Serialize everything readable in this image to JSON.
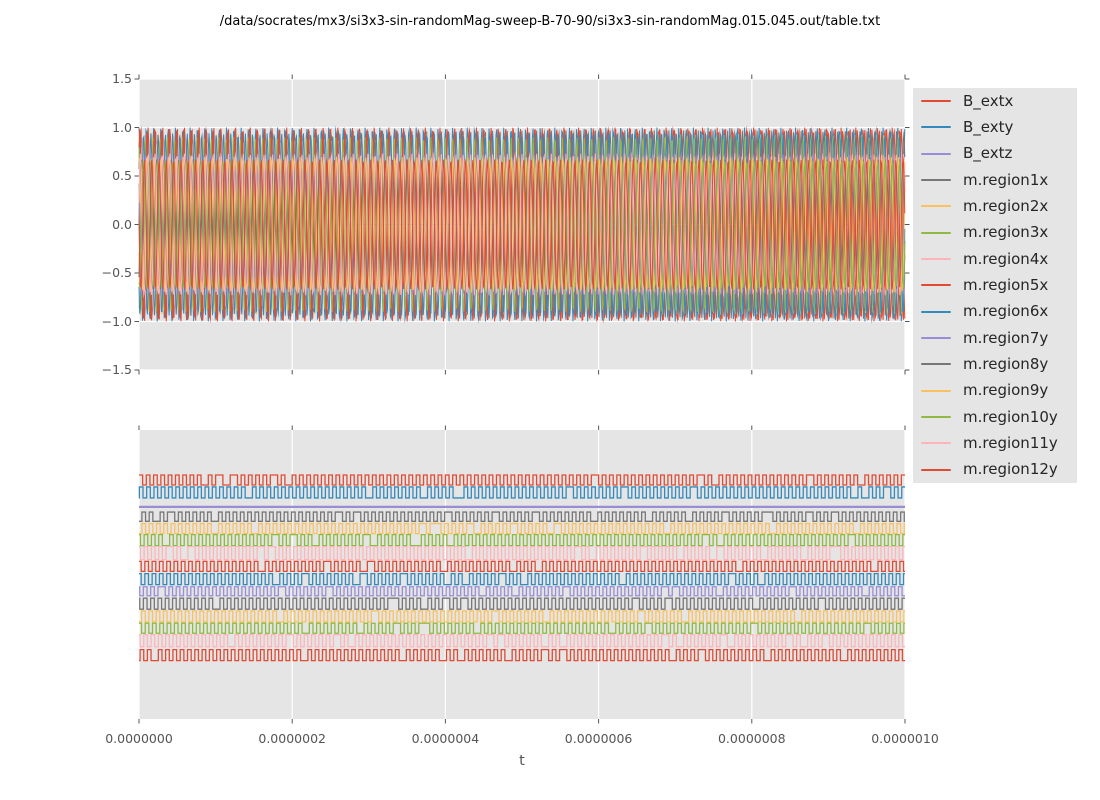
{
  "title": "/data/socrates/mx3/si3x3-sin-randomMag-sweep-B-70-90/si3x3-sin-randomMag.015.045.out/table.txt",
  "colors": {
    "figure_bg": "#FFFFFF",
    "axes_bg": "#E5E5E5",
    "grid": "#FFFFFF",
    "tick_mark": "#555555",
    "tick_text": "#555555",
    "title_text": "#000000",
    "legend_text": "#262626",
    "palette": [
      "#E24A33",
      "#348ABD",
      "#988ED5",
      "#777777",
      "#FBC15E",
      "#8EBA42",
      "#FFB5B8"
    ]
  },
  "axes": {
    "xlabel": "t",
    "x_tick_labels": [
      "0.0000000",
      "0.0000002",
      "0.0000004",
      "0.0000006",
      "0.0000008",
      "0.0000010"
    ],
    "top_y_tick_labels": [
      "1.5",
      "1.0",
      "0.5",
      "0.0",
      "−0.5",
      "−1.0",
      "−1.5"
    ]
  },
  "chart_data": {
    "type": "line",
    "title": "/data/socrates/mx3/si3x3-sin-randomMag-sweep-B-70-90/si3x3-sin-randomMag.015.045.out/table.txt",
    "xlabel": "t",
    "x_range_seconds": [
      0,
      1e-06
    ],
    "x_tick_values": [
      0,
      2e-07,
      4e-07,
      6e-07,
      8e-07,
      1e-06
    ],
    "cycles_in_window": 105,
    "switch_hold_probability": 0.06,
    "legend_position": "right",
    "subplots": [
      {
        "id": "top",
        "ylim": [
          -1.5,
          1.5
        ],
        "y_ticks": [
          1.5,
          1.0,
          0.5,
          0.0,
          -0.5,
          -1.0,
          -1.5
        ],
        "grid": "both",
        "description": "dense overlapping sinusoids, amplitude about 1"
      },
      {
        "id": "bottom",
        "ylim": null,
        "y_ticks": [],
        "grid": "x-only",
        "description": "15 vertically offset square-wave bands, one per series"
      }
    ],
    "series": [
      {
        "name": "B_extx",
        "color": "#E24A33",
        "top": {
          "waveform": "sine",
          "amplitude": 1.0,
          "cycles": 105,
          "phase": 0.0
        },
        "bottom": {
          "waveform": "square",
          "center": 0.173,
          "half": 0.0173,
          "cycles": 105,
          "phase": 0.0,
          "seed": 101
        }
      },
      {
        "name": "B_exty",
        "color": "#348ABD",
        "top": {
          "waveform": "sine",
          "amplitude": 1.0,
          "cycles": 105,
          "phase": 0.25
        },
        "bottom": {
          "waveform": "square",
          "center": 0.216,
          "half": 0.019,
          "cycles": 105,
          "phase": 0.45,
          "seed": 102
        }
      },
      {
        "name": "B_extz",
        "color": "#988ED5",
        "top": {
          "waveform": "flat",
          "value": 0.0
        },
        "bottom": {
          "waveform": "flat",
          "center": 0.266,
          "half": 0.0,
          "thickness": 2.2
        }
      },
      {
        "name": "m.region1x",
        "color": "#777777",
        "top": {
          "waveform": "sine",
          "amplitude": 0.97,
          "cycles": 104.3,
          "phase": 0.1
        },
        "bottom": {
          "waveform": "square",
          "center": 0.3,
          "half": 0.016,
          "cycles": 105,
          "phase": 0.1,
          "seed": 104
        }
      },
      {
        "name": "m.region2x",
        "color": "#FBC15E",
        "top": {
          "waveform": "sine",
          "amplitude": 0.93,
          "cycles": 105.6,
          "phase": 0.55
        },
        "bottom": {
          "waveform": "square",
          "center": 0.341,
          "half": 0.0173,
          "cycles": 105,
          "phase": 0.6,
          "seed": 105
        }
      },
      {
        "name": "m.region3x",
        "color": "#8EBA42",
        "top": {
          "waveform": "sine",
          "amplitude": 0.9,
          "cycles": 104.8,
          "phase": 0.32
        },
        "bottom": {
          "waveform": "square",
          "center": 0.381,
          "half": 0.019,
          "cycles": 105,
          "phase": 0.3,
          "seed": 106
        }
      },
      {
        "name": "m.region4x",
        "color": "#FFB5B8",
        "top": {
          "waveform": "sine",
          "amplitude": 0.88,
          "cycles": 105.2,
          "phase": 0.78
        },
        "bottom": {
          "waveform": "square",
          "center": 0.426,
          "half": 0.0225,
          "cycles": 105,
          "phase": 0.8,
          "seed": 107
        }
      },
      {
        "name": "m.region5x",
        "color": "#E24A33",
        "top": {
          "waveform": "sine",
          "amplitude": 0.985,
          "cycles": 104.6,
          "phase": 0.15
        },
        "bottom": {
          "waveform": "square",
          "center": 0.472,
          "half": 0.0173,
          "cycles": 105,
          "phase": 0.2,
          "seed": 108
        }
      },
      {
        "name": "m.region6x",
        "color": "#348ABD",
        "top": {
          "waveform": "sine",
          "amplitude": 0.94,
          "cycles": 105.4,
          "phase": 0.62
        },
        "bottom": {
          "waveform": "square",
          "center": 0.516,
          "half": 0.019,
          "cycles": 105,
          "phase": 0.7,
          "seed": 109
        }
      },
      {
        "name": "m.region7y",
        "color": "#988ED5",
        "top": {
          "waveform": "sine",
          "amplitude": 0.72,
          "cycles": 104.5,
          "phase": 0.4
        },
        "bottom": {
          "waveform": "square",
          "center": 0.558,
          "half": 0.0156,
          "cycles": 105,
          "phase": 0.4,
          "seed": 110
        }
      },
      {
        "name": "m.region8y",
        "color": "#777777",
        "top": {
          "waveform": "sine",
          "amplitude": 0.67,
          "cycles": 105.1,
          "phase": 0.85
        },
        "bottom": {
          "waveform": "square",
          "center": 0.601,
          "half": 0.019,
          "cycles": 105,
          "phase": 0.9,
          "seed": 111
        }
      },
      {
        "name": "m.region9y",
        "color": "#FBC15E",
        "top": {
          "waveform": "sine",
          "amplitude": 0.7,
          "cycles": 104.9,
          "phase": 0.22
        },
        "bottom": {
          "waveform": "square",
          "center": 0.645,
          "half": 0.019,
          "cycles": 105,
          "phase": 0.15,
          "seed": 112
        }
      },
      {
        "name": "m.region10y",
        "color": "#8EBA42",
        "top": {
          "waveform": "sine",
          "amplitude": 0.66,
          "cycles": 105.3,
          "phase": 0.68
        },
        "bottom": {
          "waveform": "square",
          "center": 0.686,
          "half": 0.0173,
          "cycles": 105,
          "phase": 0.65,
          "seed": 113
        }
      },
      {
        "name": "m.region11y",
        "color": "#FFB5B8",
        "top": {
          "waveform": "sine",
          "amplitude": 0.73,
          "cycles": 104.4,
          "phase": 0.05
        },
        "bottom": {
          "waveform": "square",
          "center": 0.729,
          "half": 0.0208,
          "cycles": 105,
          "phase": 0.35,
          "seed": 114
        }
      },
      {
        "name": "m.region12y",
        "color": "#E24A33",
        "top": {
          "waveform": "sine",
          "amplitude": 0.67,
          "cycles": 105.0,
          "phase": 0.5
        },
        "bottom": {
          "waveform": "square",
          "center": 0.779,
          "half": 0.019,
          "cycles": 105,
          "phase": 0.85,
          "seed": 115
        }
      }
    ]
  }
}
